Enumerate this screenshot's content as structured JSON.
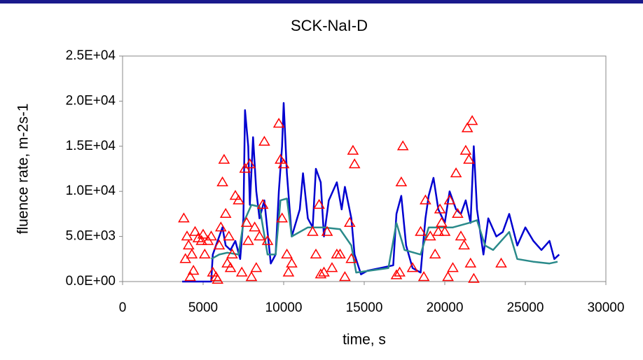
{
  "chart_data": {
    "type": "line",
    "title": "SCK-NaI-D",
    "x_label": "time, s",
    "y_label": "fluence rate, m-2s-1",
    "xlim": [
      0,
      30000
    ],
    "xticks": [
      0,
      5000,
      10000,
      15000,
      20000,
      25000,
      30000
    ],
    "ylim": [
      0,
      25000
    ],
    "yticks": [
      {
        "value": 0,
        "label": "0.0E+00"
      },
      {
        "value": 5000,
        "label": "5.0E+03"
      },
      {
        "value": 10000,
        "label": "1.0E+04"
      },
      {
        "value": 15000,
        "label": "1.5E+04"
      },
      {
        "value": 20000,
        "label": "2.0E+04"
      },
      {
        "value": 25000,
        "label": "2.5E+04"
      }
    ],
    "grid": false,
    "series": [
      {
        "mode": "lines",
        "color": "#0000d0",
        "x": [
          3700,
          5500,
          5600,
          5900,
          6200,
          6400,
          6700,
          7000,
          7300,
          7500,
          7600,
          7800,
          7900,
          8100,
          8300,
          8500,
          8800,
          9200,
          9500,
          9700,
          9900,
          10000,
          10200,
          10500,
          11000,
          11200,
          11500,
          11800,
          12000,
          12300,
          12500,
          12800,
          13300,
          13600,
          13800,
          14200,
          14400,
          14800,
          15200,
          16000,
          16800,
          17000,
          17300,
          17600,
          18000,
          18500,
          18800,
          19000,
          19300,
          19600,
          20000,
          20300,
          20700,
          21000,
          21300,
          21600,
          21800,
          22000,
          22400,
          22700,
          23200,
          23600,
          24000,
          24500,
          25000,
          25500,
          26000,
          26500,
          26800,
          27100
        ],
        "values": [
          0,
          0,
          3000,
          4500,
          6000,
          4000,
          3500,
          4500,
          2500,
          7000,
          19000,
          15000,
          8500,
          16000,
          10000,
          7000,
          9000,
          2000,
          3000,
          10000,
          15000,
          19800,
          12000,
          5000,
          8000,
          12000,
          7000,
          6000,
          12500,
          11000,
          5000,
          9000,
          11000,
          8000,
          10500,
          7000,
          3000,
          800,
          1200,
          1500,
          1800,
          7500,
          9500,
          4000,
          1500,
          1000,
          7000,
          9500,
          11500,
          8000,
          6500,
          10000,
          8000,
          7500,
          9000,
          6500,
          15000,
          8000,
          3000,
          7000,
          5000,
          5500,
          7500,
          4000,
          6000,
          4500,
          3500,
          4500,
          2500,
          3000
        ]
      },
      {
        "mode": "lines",
        "color": "#2a8a8a",
        "x": [
          5500,
          6000,
          6500,
          7200,
          7500,
          8000,
          8500,
          9000,
          9500,
          9800,
          10200,
          10500,
          11500,
          12500,
          13500,
          14200,
          14500,
          16500,
          17000,
          17500,
          18500,
          19000,
          19500,
          20500,
          21500,
          22000,
          22500,
          23000,
          24000,
          24500,
          25500,
          26500,
          27000
        ],
        "values": [
          2500,
          3000,
          3200,
          3000,
          6500,
          8500,
          8300,
          3000,
          3000,
          9000,
          9200,
          5000,
          6000,
          6000,
          5800,
          4000,
          1000,
          1500,
          6500,
          3500,
          3000,
          6000,
          6000,
          6000,
          6500,
          6800,
          4000,
          3500,
          5500,
          2500,
          2200,
          2000,
          2200
        ]
      },
      {
        "mode": "markers",
        "marker": "triangle",
        "color": "#ff0000",
        "x": [
          3800,
          3900,
          4000,
          4100,
          4200,
          4300,
          4400,
          4500,
          4700,
          4900,
          5000,
          5100,
          5300,
          5500,
          5600,
          5800,
          5900,
          6000,
          6100,
          6200,
          6300,
          6400,
          6500,
          6600,
          6700,
          6800,
          7000,
          7200,
          7400,
          7600,
          7700,
          7800,
          7900,
          8000,
          8200,
          8300,
          8500,
          8700,
          8800,
          9000,
          9700,
          9800,
          9900,
          10000,
          10200,
          10300,
          10500,
          11800,
          12000,
          12200,
          12300,
          12500,
          12700,
          13000,
          13300,
          13500,
          13800,
          14100,
          14200,
          14300,
          14400,
          17000,
          17200,
          17300,
          17400,
          18000,
          18500,
          18700,
          18800,
          19100,
          19400,
          19600,
          19700,
          19800,
          20000,
          20200,
          20300,
          20500,
          20700,
          20800,
          21000,
          21200,
          21300,
          21400,
          21500,
          21600,
          21700,
          21800,
          23500
        ],
        "values": [
          7000,
          2500,
          5000,
          4000,
          500,
          3000,
          1200,
          5500,
          4800,
          4500,
          5200,
          3000,
          4500,
          5000,
          1000,
          500,
          200,
          4000,
          6000,
          11000,
          13500,
          7500,
          2000,
          5000,
          1500,
          3000,
          9500,
          9000,
          1000,
          12500,
          6500,
          4500,
          13000,
          500,
          6000,
          1500,
          5000,
          8500,
          15500,
          4500,
          17500,
          13500,
          7000,
          13000,
          3000,
          1000,
          2000,
          5500,
          3000,
          8500,
          800,
          1000,
          5500,
          1500,
          3000,
          3000,
          500,
          6500,
          2500,
          14500,
          13000,
          700,
          1000,
          11000,
          15000,
          1500,
          5500,
          500,
          9000,
          5000,
          3000,
          5500,
          8000,
          6500,
          5500,
          500,
          9000,
          1500,
          12000,
          7500,
          5000,
          4000,
          14500,
          17000,
          13500,
          2000,
          17800,
          300,
          2000
        ]
      }
    ]
  }
}
